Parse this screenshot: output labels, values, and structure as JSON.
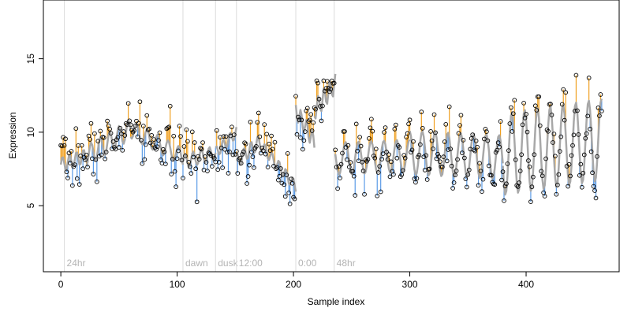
{
  "chart_data": {
    "type": "line",
    "title": "",
    "xlabel": "Sample index",
    "ylabel": "Expression",
    "xlim": [
      -15,
      480
    ],
    "ylim": [
      0.5,
      19
    ],
    "x_ticks": [
      0,
      100,
      200,
      300,
      400
    ],
    "y_ticks": [
      5,
      10,
      15
    ],
    "grid": false,
    "legend": "none",
    "colors": {
      "above_fit": "#f0a020",
      "below_fit": "#5b9be6",
      "fit_line": "#a8a8a8",
      "points": "#000000",
      "markers": "#dcdcdc",
      "marker_text": "#b4b4b4",
      "axis": "#000000"
    },
    "markers": [
      {
        "x": 3,
        "label": "24hr"
      },
      {
        "x": 105,
        "label": "dawn"
      },
      {
        "x": 133,
        "label": "dusk"
      },
      {
        "x": 151,
        "label": "12:00"
      },
      {
        "x": 202,
        "label": "0:00"
      },
      {
        "x": 235,
        "label": "48hr"
      }
    ],
    "segments": [
      {
        "x0": 0,
        "x1": 22,
        "fit_start": 7.8,
        "fit_end": 8.4,
        "amp": 0.5,
        "period": 6
      },
      {
        "x0": 22,
        "x1": 60,
        "fit_start": 8.4,
        "fit_end": 10.2,
        "amp": 0.7,
        "period": 8
      },
      {
        "x0": 60,
        "x1": 105,
        "fit_start": 10.2,
        "fit_end": 8.3,
        "amp": 0.6,
        "period": 9
      },
      {
        "x0": 105,
        "x1": 133,
        "fit_start": 8.0,
        "fit_end": 8.6,
        "amp": 0.5,
        "period": 7
      },
      {
        "x0": 133,
        "x1": 151,
        "fit_start": 8.6,
        "fit_end": 10.0,
        "amp": 0.4,
        "period": 6
      },
      {
        "x0": 151,
        "x1": 170,
        "fit_start": 8.0,
        "fit_end": 9.3,
        "amp": 0.5,
        "period": 6
      },
      {
        "x0": 170,
        "x1": 202,
        "fit_start": 9.3,
        "fit_end": 6.3,
        "amp": 0.4,
        "period": 6
      },
      {
        "x0": 202,
        "x1": 218,
        "fit_start": 11.5,
        "fit_end": 9.3,
        "amp": 0.6,
        "period": 5
      },
      {
        "x0": 218,
        "x1": 236,
        "fit_start": 11.5,
        "fit_end": 13.3,
        "amp": 0.7,
        "period": 5
      },
      {
        "x0": 236,
        "x1": 300,
        "fit_start": 8.2,
        "fit_end": 8.4,
        "amp": 1.1,
        "period": 11
      },
      {
        "x0": 300,
        "x1": 380,
        "fit_start": 8.6,
        "fit_end": 8.3,
        "amp": 1.5,
        "period": 11
      },
      {
        "x0": 380,
        "x1": 465,
        "fit_start": 8.5,
        "fit_end": 9.5,
        "amp": 2.8,
        "period": 11
      }
    ],
    "seed": 7,
    "noise_sd": 1.0,
    "points_per_unit": 1
  }
}
